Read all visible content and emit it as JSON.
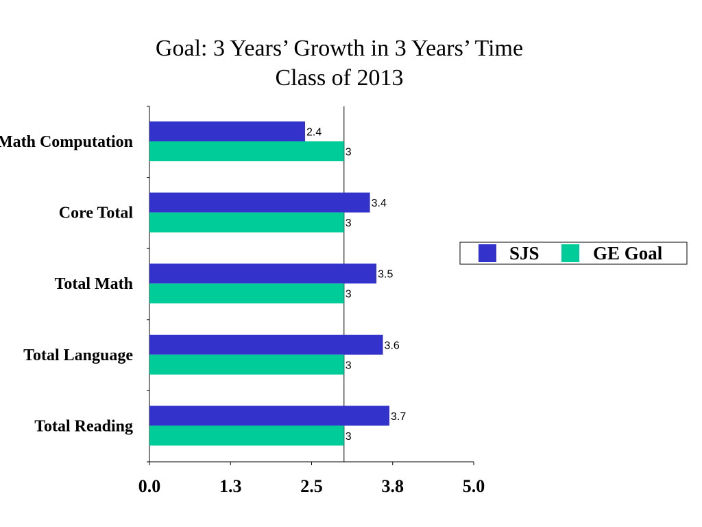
{
  "chart_data": {
    "type": "bar",
    "orientation": "horizontal",
    "title": "Goal: 3 Years’ Growth in 3 Years’ Time",
    "subtitle": "Class of 2013",
    "categories": [
      "Math Computation",
      "Core Total",
      "Total Math",
      "Total Language",
      "Total Reading"
    ],
    "series": [
      {
        "name": "SJS",
        "values": [
          2.4,
          3.4,
          3.5,
          3.6,
          3.7
        ],
        "color": "#3333cc"
      },
      {
        "name": "GE Goal",
        "values": [
          3,
          3,
          3,
          3,
          3
        ],
        "color": "#00cc99"
      }
    ],
    "data_labels": {
      "SJS": [
        "2.4",
        "3.4",
        "3.5",
        "3.6",
        "3.7"
      ],
      "GE Goal": [
        "3",
        "3",
        "3",
        "3",
        "3"
      ]
    },
    "xlim": [
      0,
      5
    ],
    "x_ticks": [
      "0.0",
      "1.3",
      "2.5",
      "3.8",
      "5.0"
    ],
    "x_tick_values": [
      0,
      1.25,
      2.5,
      3.75,
      5
    ],
    "reference_line": 3,
    "grid": false,
    "legend_position": "right"
  }
}
